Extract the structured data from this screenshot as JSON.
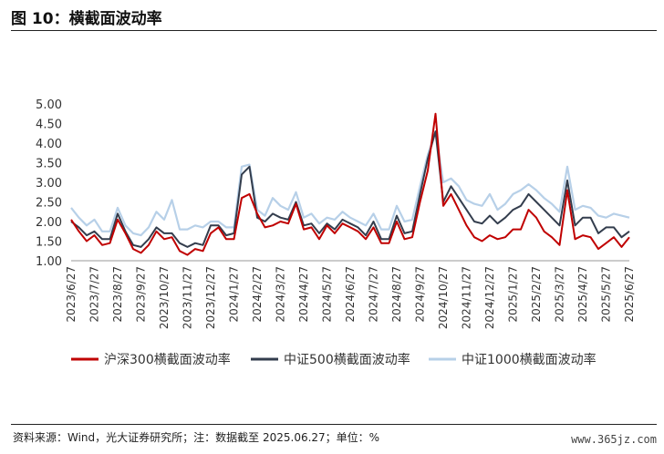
{
  "figure": {
    "title": "图 10：横截面波动率",
    "source": "资料来源：Wind，光大证券研究所；注：数据截至 2025.06.27；单位：%",
    "watermark": "www.365jz.com"
  },
  "chart_data": {
    "type": "line",
    "ylim": [
      1.0,
      5.0
    ],
    "yticks": [
      "1.00",
      "1.50",
      "2.00",
      "2.50",
      "3.00",
      "3.50",
      "4.00",
      "4.50",
      "5.00"
    ],
    "x_labels": [
      "2023/6/27",
      "2023/7/27",
      "2023/8/27",
      "2023/9/27",
      "2023/10/27",
      "2023/11/27",
      "2023/12/27",
      "2024/1/27",
      "2024/2/27",
      "2024/3/27",
      "2024/4/27",
      "2024/5/27",
      "2024/6/27",
      "2024/7/27",
      "2024/8/27",
      "2024/9/27",
      "2024/10/27",
      "2024/11/27",
      "2024/12/27",
      "2025/1/27",
      "2025/2/27",
      "2025/3/27",
      "2025/4/27",
      "2025/5/27",
      "2025/6/27"
    ],
    "legend_position": "bottom",
    "series": [
      {
        "name": "沪深300横截面波动率",
        "color": "#c00000",
        "values": [
          2.05,
          1.75,
          1.5,
          1.65,
          1.4,
          1.45,
          2.05,
          1.7,
          1.3,
          1.2,
          1.4,
          1.75,
          1.55,
          1.6,
          1.25,
          1.15,
          1.3,
          1.25,
          1.7,
          1.85,
          1.55,
          1.55,
          2.6,
          2.7,
          2.2,
          1.85,
          1.9,
          2.0,
          1.95,
          2.45,
          1.8,
          1.85,
          1.55,
          1.9,
          1.7,
          1.95,
          1.85,
          1.75,
          1.55,
          1.85,
          1.45,
          1.45,
          2.0,
          1.55,
          1.6,
          2.5,
          3.3,
          4.75,
          2.4,
          2.7,
          2.3,
          1.9,
          1.6,
          1.5,
          1.65,
          1.55,
          1.6,
          1.8,
          1.8,
          2.3,
          2.1,
          1.75,
          1.6,
          1.4,
          2.8,
          1.55,
          1.65,
          1.6,
          1.3,
          1.45,
          1.6,
          1.35,
          1.6
        ]
      },
      {
        "name": "中证500横截面波动率",
        "color": "#333d4d",
        "values": [
          2.0,
          1.85,
          1.65,
          1.75,
          1.55,
          1.55,
          2.2,
          1.75,
          1.4,
          1.35,
          1.55,
          1.85,
          1.7,
          1.7,
          1.45,
          1.35,
          1.45,
          1.4,
          1.9,
          1.9,
          1.65,
          1.7,
          3.2,
          3.4,
          2.1,
          2.0,
          2.2,
          2.1,
          2.05,
          2.5,
          1.9,
          1.95,
          1.7,
          1.95,
          1.8,
          2.05,
          1.95,
          1.85,
          1.65,
          2.0,
          1.55,
          1.55,
          2.15,
          1.7,
          1.75,
          2.7,
          3.6,
          4.3,
          2.5,
          2.9,
          2.6,
          2.3,
          2.0,
          1.95,
          2.15,
          1.95,
          2.1,
          2.3,
          2.4,
          2.7,
          2.5,
          2.3,
          2.1,
          1.9,
          3.05,
          1.9,
          2.1,
          2.1,
          1.7,
          1.85,
          1.85,
          1.6,
          1.75
        ]
      },
      {
        "name": "中证1000横截面波动率",
        "color": "#b7d0e8",
        "values": [
          2.35,
          2.1,
          1.9,
          2.05,
          1.75,
          1.75,
          2.35,
          1.9,
          1.7,
          1.65,
          1.85,
          2.25,
          2.05,
          2.55,
          1.8,
          1.8,
          1.9,
          1.85,
          2.0,
          2.0,
          1.85,
          1.85,
          3.4,
          3.45,
          2.3,
          2.15,
          2.6,
          2.4,
          2.3,
          2.75,
          2.1,
          2.2,
          1.95,
          2.1,
          2.05,
          2.25,
          2.1,
          2.0,
          1.9,
          2.2,
          1.8,
          1.8,
          2.4,
          2.0,
          2.05,
          2.9,
          3.7,
          4.3,
          3.0,
          3.1,
          2.9,
          2.55,
          2.45,
          2.4,
          2.7,
          2.3,
          2.45,
          2.7,
          2.8,
          2.95,
          2.8,
          2.6,
          2.45,
          2.25,
          3.4,
          2.3,
          2.4,
          2.35,
          2.15,
          2.1,
          2.2,
          2.15,
          2.1
        ]
      }
    ]
  }
}
